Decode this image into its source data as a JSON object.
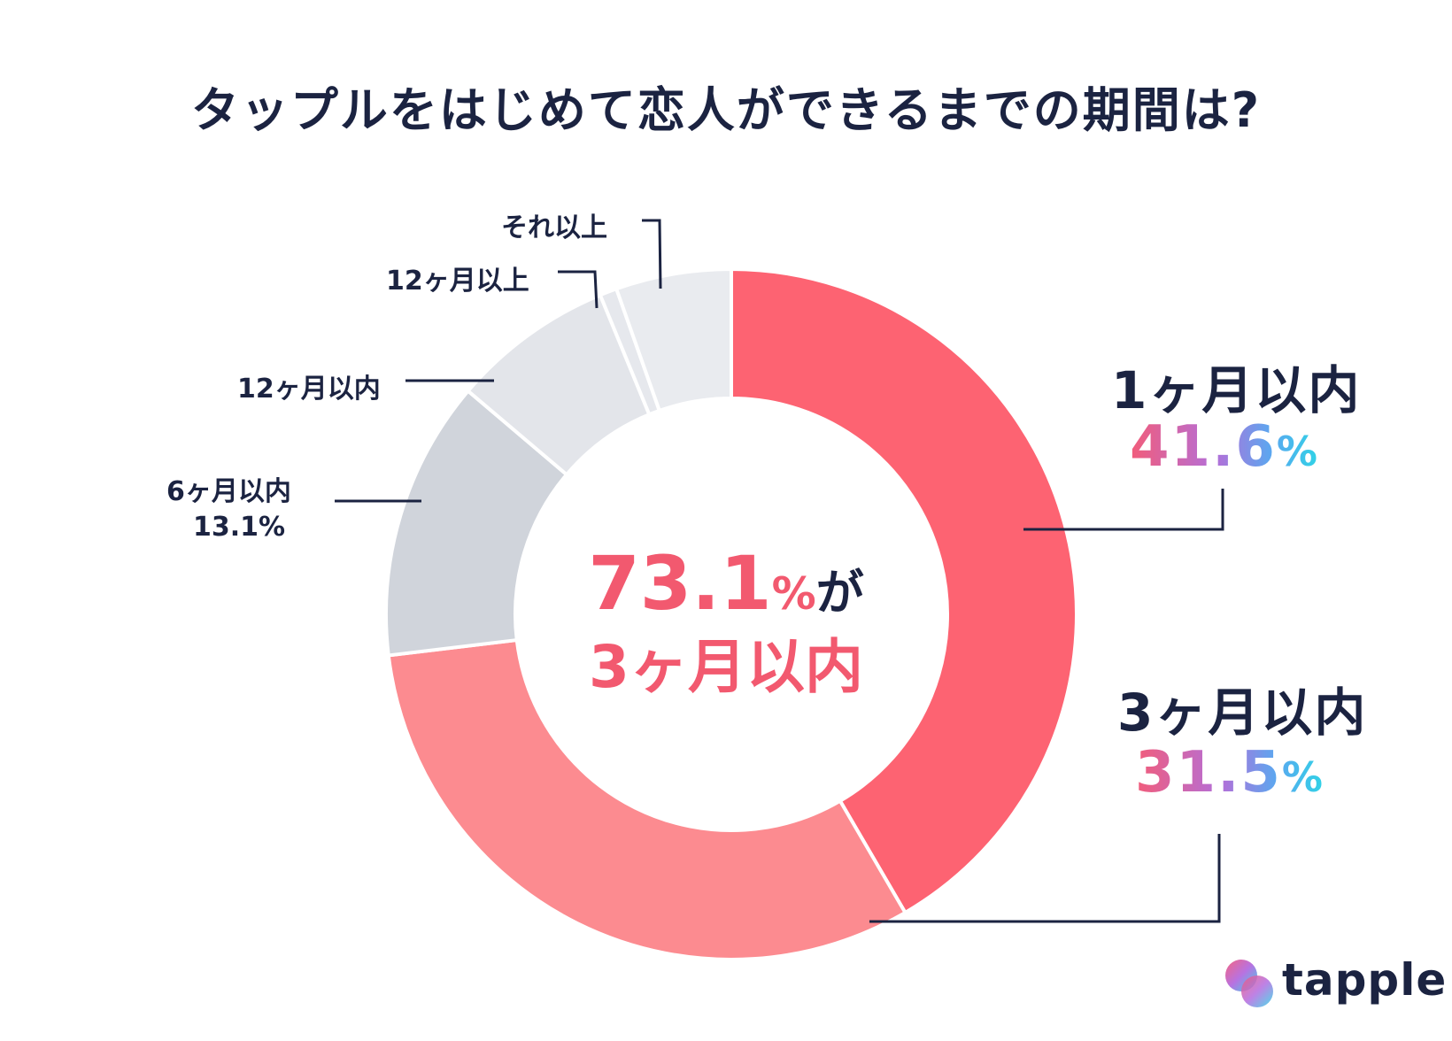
{
  "title": "タップルをはじめて恋人ができるまでの期間は?",
  "chart_data": {
    "type": "pie",
    "title": "タップルをはじめて恋人ができるまでの期間は?",
    "categories": [
      "1ヶ月以内",
      "3ヶ月以内",
      "6ヶ月以内",
      "12ヶ月以内",
      "12ヶ月以上",
      "それ以上"
    ],
    "values": [
      41.6,
      31.5,
      13.1,
      7.6,
      0.8,
      5.4
    ],
    "colors": [
      "#fd6372",
      "#fc8b90",
      "#d0d4db",
      "#e3e5ea",
      "#e6e8ed",
      "#e9ebef"
    ],
    "center_text": {
      "line1_value": "73.1",
      "line1_unit": "%",
      "line1_suffix": "が",
      "line2": "3ヶ月以内"
    }
  },
  "labels": {
    "one_month": {
      "label": "1ヶ月以内",
      "value": "41.6",
      "unit": "%"
    },
    "three_month": {
      "label": "3ヶ月以内",
      "value": "31.5",
      "unit": "%"
    },
    "six_month": {
      "label": "6ヶ月以内",
      "value": "13.1%"
    },
    "twelve_within": {
      "label": "12ヶ月以内"
    },
    "twelve_over": {
      "label": "12ヶ月以上"
    },
    "more": {
      "label": "それ以上"
    }
  },
  "logo": {
    "text": "tapple",
    "icon": "tapple-logo-icon"
  }
}
